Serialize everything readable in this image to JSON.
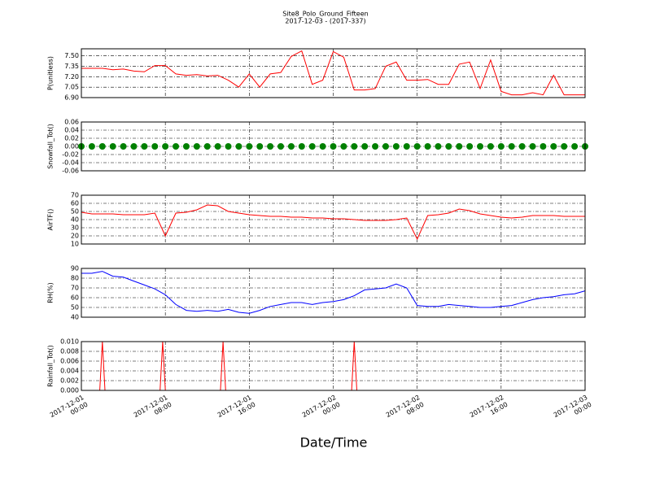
{
  "chart_data": {
    "type": "multi",
    "title": "Site8_Polo_Ground_Fifteen",
    "subtitle": "2017-12-03 - (2017-337)",
    "xlabel": "Date/Time",
    "xlim": [
      "2017-12-01 00:00",
      "2017-12-03 00:00"
    ],
    "xticks": [
      {
        "value": "2017-12-01 00:00",
        "label": "2017-12-01\n00:00"
      },
      {
        "value": "2017-12-01 08:00",
        "label": "2017-12-01\n08:00"
      },
      {
        "value": "2017-12-01 16:00",
        "label": "2017-12-01\n16:00"
      },
      {
        "value": "2017-12-02 00:00",
        "label": "2017-12-02\n00:00"
      },
      {
        "value": "2017-12-02 08:00",
        "label": "2017-12-02\n08:00"
      },
      {
        "value": "2017-12-02 16:00",
        "label": "2017-12-02\n16:00"
      },
      {
        "value": "2017-12-03 00:00",
        "label": "2017-12-03\n00:00"
      }
    ],
    "grid": true,
    "x": [
      "2017-12-01 00:00",
      "2017-12-01 01:00",
      "2017-12-01 02:00",
      "2017-12-01 03:00",
      "2017-12-01 04:00",
      "2017-12-01 05:00",
      "2017-12-01 06:00",
      "2017-12-01 07:00",
      "2017-12-01 08:00",
      "2017-12-01 09:00",
      "2017-12-01 10:00",
      "2017-12-01 11:00",
      "2017-12-01 12:00",
      "2017-12-01 13:00",
      "2017-12-01 14:00",
      "2017-12-01 15:00",
      "2017-12-01 16:00",
      "2017-12-01 17:00",
      "2017-12-01 18:00",
      "2017-12-01 19:00",
      "2017-12-01 20:00",
      "2017-12-01 21:00",
      "2017-12-01 22:00",
      "2017-12-01 23:00",
      "2017-12-02 00:00",
      "2017-12-02 01:00",
      "2017-12-02 02:00",
      "2017-12-02 03:00",
      "2017-12-02 04:00",
      "2017-12-02 05:00",
      "2017-12-02 06:00",
      "2017-12-02 07:00",
      "2017-12-02 08:00",
      "2017-12-02 09:00",
      "2017-12-02 10:00",
      "2017-12-02 11:00",
      "2017-12-02 12:00",
      "2017-12-02 13:00",
      "2017-12-02 14:00",
      "2017-12-02 15:00",
      "2017-12-02 16:00",
      "2017-12-02 17:00",
      "2017-12-02 18:00",
      "2017-12-02 19:00",
      "2017-12-02 20:00",
      "2017-12-02 21:00",
      "2017-12-02 22:00",
      "2017-12-02 23:00",
      "2017-12-03 00:00"
    ],
    "panels": [
      {
        "type": "line",
        "ylabel": "P(unitless)",
        "ylim": [
          6.9,
          7.6
        ],
        "yticks": [
          {
            "value": 6.9,
            "label": "6.90"
          },
          7.05,
          {
            "value": 7.2,
            "label": "7.20"
          },
          7.35,
          {
            "value": 7.5,
            "label": "7.50"
          }
        ],
        "series": [
          {
            "color": "#ff0000",
            "values": [
              7.32,
              7.32,
              7.32,
              7.3,
              7.31,
              7.28,
              7.27,
              7.36,
              7.36,
              7.24,
              7.22,
              7.23,
              7.21,
              7.22,
              7.15,
              7.05,
              7.24,
              7.05,
              7.24,
              7.26,
              7.49,
              7.57,
              7.09,
              7.15,
              7.56,
              7.48,
              7.01,
              7.01,
              7.03,
              7.35,
              7.41,
              7.15,
              7.15,
              7.16,
              7.09,
              7.09,
              7.38,
              7.41,
              7.03,
              7.44,
              6.99,
              6.94,
              6.94,
              6.97,
              6.94,
              7.22,
              6.94,
              6.94,
              6.94
            ]
          }
        ]
      },
      {
        "type": "scatter",
        "ylabel": "Snowfall_Tot()",
        "ylim": [
          -0.06,
          0.06
        ],
        "yticks": [
          -0.06,
          -0.04,
          -0.02,
          {
            "value": 0,
            "label": "0.00"
          },
          0.02,
          0.04,
          0.06
        ],
        "series": [
          {
            "color": "#008000",
            "values": [
              0,
              0,
              0,
              0,
              0,
              0,
              0,
              0,
              0,
              0,
              0,
              0,
              0,
              0,
              0,
              0,
              0,
              0,
              0,
              0,
              0,
              0,
              0,
              0,
              0,
              0,
              0,
              0,
              0,
              0,
              0,
              0,
              0,
              0,
              0,
              0,
              0,
              0,
              0,
              0,
              0,
              0,
              0,
              0,
              0,
              0,
              0,
              0,
              0
            ]
          }
        ]
      },
      {
        "type": "line",
        "ylabel": "AirTF()",
        "ylim": [
          10,
          70
        ],
        "yticks": [
          10,
          20,
          30,
          40,
          50,
          60,
          70
        ],
        "series": [
          {
            "color": "#ff0000",
            "values": [
              49,
              47,
              47,
              47,
              46,
              46,
              46,
              48,
              20,
              48,
              49,
              52,
              58,
              57,
              50,
              48,
              46,
              45,
              44,
              44,
              43,
              43,
              42,
              42,
              41,
              41,
              40,
              39,
              39,
              39,
              40,
              42,
              16,
              45,
              46,
              48,
              53,
              51,
              47,
              45,
              43,
              42,
              43,
              45,
              45,
              45,
              44,
              44,
              44
            ]
          }
        ]
      },
      {
        "type": "line",
        "ylabel": "RH(%)",
        "ylim": [
          40,
          90
        ],
        "yticks": [
          40,
          50,
          60,
          70,
          80,
          90
        ],
        "series": [
          {
            "color": "#0000ff",
            "values": [
              85,
              85,
              87,
              82,
              81,
              77,
              73,
              69,
              63,
              53,
              47,
              46,
              47,
              46,
              48,
              45,
              44,
              47,
              51,
              53,
              55,
              55,
              53,
              55,
              56,
              58,
              62,
              68,
              69,
              70,
              74,
              70,
              52,
              51,
              51,
              53,
              52,
              51,
              50,
              50,
              51,
              52,
              55,
              58,
              60,
              61,
              63,
              64,
              67
            ]
          }
        ]
      },
      {
        "type": "line",
        "ylabel": "Rainfall_Tot()",
        "ylim": [
          0,
          0.01
        ],
        "yticks": [
          {
            "value": 0,
            "label": "0.000"
          },
          {
            "value": 0.002,
            "label": "0.002"
          },
          {
            "value": 0.004,
            "label": "0.004"
          },
          {
            "value": 0.006,
            "label": "0.006"
          },
          {
            "value": 0.008,
            "label": "0.008"
          },
          {
            "value": 0.01,
            "label": "0.010"
          }
        ],
        "x": [
          "2017-12-01 00:00",
          "2017-12-01 01:45",
          "2017-12-01 02:00",
          "2017-12-01 02:15",
          "2017-12-01 07:30",
          "2017-12-01 07:45",
          "2017-12-01 08:00",
          "2017-12-01 13:15",
          "2017-12-01 13:30",
          "2017-12-01 13:45",
          "2017-12-02 01:45",
          "2017-12-02 02:00",
          "2017-12-02 02:15",
          "2017-12-03 00:00"
        ],
        "series": [
          {
            "color": "#ff0000",
            "values": [
              0,
              0,
              0.01,
              0,
              0,
              0.01,
              0,
              0,
              0.01,
              0,
              0,
              0.01,
              0,
              0
            ]
          }
        ]
      }
    ]
  }
}
